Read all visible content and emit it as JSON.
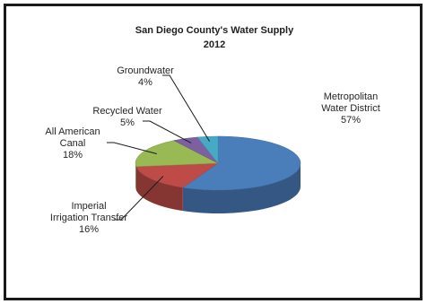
{
  "chart_data": {
    "type": "pie",
    "title": "San Diego County's Water Supply",
    "subtitle": "2012",
    "slices": [
      {
        "label_lines": [
          "Metropolitan",
          "Water District"
        ],
        "pct_label": "57%",
        "value": 57,
        "color": "#4a7ebb"
      },
      {
        "label_lines": [
          "Imperial",
          "Irrigation Transfer"
        ],
        "pct_label": "16%",
        "value": 16,
        "color": "#be4b48"
      },
      {
        "label_lines": [
          "All American",
          "Canal"
        ],
        "pct_label": "18%",
        "value": 18,
        "color": "#98b954"
      },
      {
        "label_lines": [
          "Recycled Water"
        ],
        "pct_label": "5%",
        "value": 5,
        "color": "#7d60a0"
      },
      {
        "label_lines": [
          "Groundwater"
        ],
        "pct_label": "4%",
        "value": 4,
        "color": "#46aac5"
      }
    ]
  }
}
